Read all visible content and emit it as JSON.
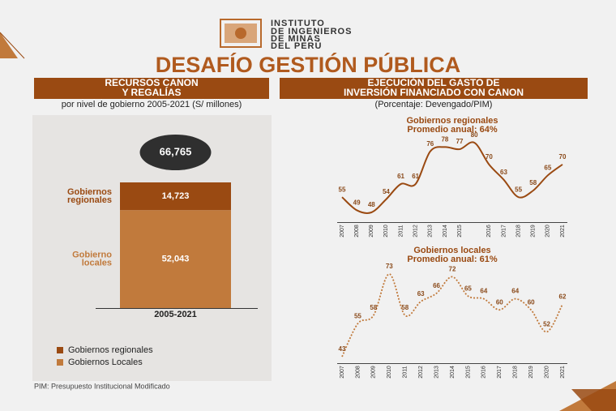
{
  "header": {
    "institute": [
      "INSTITUTO",
      "DE INGENIEROS",
      "DE MINAS",
      "DEL PERÚ"
    ],
    "title": "DESAFÍO GESTIÓN PÚBLICA"
  },
  "panels": [
    {
      "title": [
        "RECURSOS CANON",
        "Y REGALÍAS"
      ],
      "subtitle": "por nivel de gobierno 2005-2021 (S/ millones)"
    },
    {
      "title": [
        "EJECUCIÓN DEL GASTO DE",
        "INVERSIÓN FINANCIADO CON CANON"
      ],
      "subtitle": "(Porcentaje: Devengado/PIM)"
    }
  ],
  "footnote": "PIM: Presupuesto Institucional Modificado",
  "chart_data": [
    {
      "type": "stacked_bar",
      "categories": [
        "2005-2021"
      ],
      "total": 66765,
      "total_label": "66,765",
      "series": [
        {
          "name": "Gobiernos regionales",
          "side_label": [
            "Gobiernos",
            "regionales"
          ],
          "color": "#9a4a12",
          "values": [
            14723
          ],
          "value_labels": [
            "14,723"
          ]
        },
        {
          "name": "Gobiernos Locales",
          "side_label": [
            "Gobierno",
            "locales"
          ],
          "color": "#c17a3c",
          "values": [
            52043
          ],
          "value_labels": [
            "52,043"
          ]
        }
      ]
    },
    {
      "type": "line",
      "title": [
        "Gobiernos regionales",
        "Promedio anual: 64%"
      ],
      "style": "solid",
      "color": "#9a4a12",
      "categories": [
        "2007",
        "2008",
        "2009",
        "2010",
        "2011",
        "2012",
        "2013",
        "2014",
        "2015",
        null,
        "2016",
        "2017",
        "2018",
        "2019",
        "2020",
        "2021"
      ],
      "values": [
        55,
        49,
        48,
        54,
        61,
        61,
        76,
        78,
        77,
        80,
        70,
        63,
        55,
        58,
        65,
        70
      ]
    },
    {
      "type": "line",
      "title": [
        "Gobiernos locales",
        "Promedio anual: 61%"
      ],
      "style": "dotted",
      "color": "#c17a3c",
      "categories": [
        "2007",
        "2008",
        "2009",
        "2010",
        "2011",
        "2012",
        "2013",
        "2014",
        "2015",
        "2016",
        "2017",
        "2018",
        "2019",
        "2020",
        "2021"
      ],
      "values": [
        43,
        55,
        58,
        73,
        58,
        63,
        66,
        72,
        65,
        64,
        60,
        64,
        60,
        52,
        62
      ]
    }
  ]
}
